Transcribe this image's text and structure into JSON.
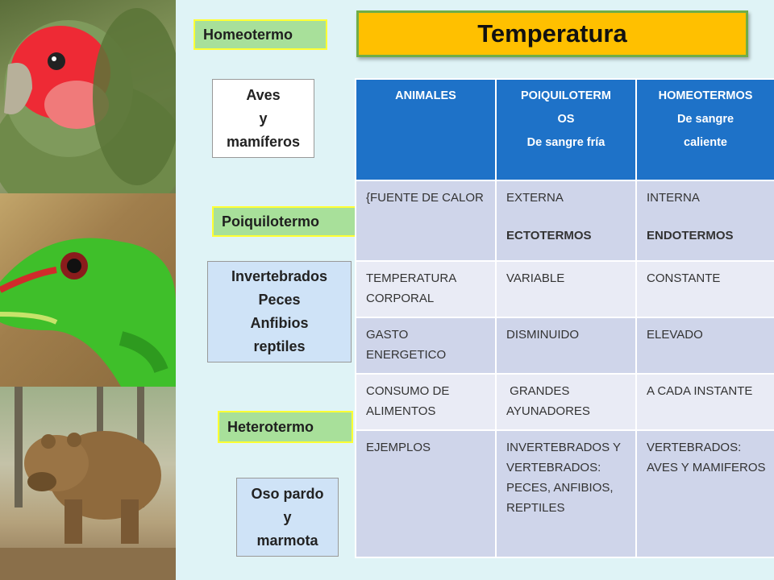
{
  "title": "Temperatura",
  "tags": {
    "homeotermo": "Homeotermo",
    "poiquilotermo": "Poiquilotermo",
    "heterotermo": "Heterotermo"
  },
  "groups": {
    "homeotermo": [
      "Aves",
      "y",
      "mamíferos"
    ],
    "poiquilotermo": [
      "Invertebrados",
      "Peces",
      "Anfibios",
      "reptiles"
    ],
    "heterotermo": [
      "Oso pardo",
      "y",
      "marmota"
    ]
  },
  "table": {
    "headers": [
      {
        "line1": "ANIMALES",
        "line2": ""
      },
      {
        "line1": "POIQUILOTERM",
        "line1b": "OS",
        "line2": "De sangre fría"
      },
      {
        "line1": "HOMEOTERMOS",
        "line2": "De sangre",
        "line3": "caliente"
      }
    ],
    "rows": [
      {
        "c1": "{FUENTE DE CALOR",
        "c2": "EXTERNA",
        "c2b": "ECTOTERMOS",
        "c3": "INTERNA",
        "c3b": "ENDOTERMOS"
      },
      {
        "c1": "TEMPERATURA CORPORAL",
        "c2": "VARIABLE",
        "c3": "CONSTANTE"
      },
      {
        "c1": "GASTO ENERGETICO",
        "c2": "DISMINUIDO",
        "c3": "ELEVADO"
      },
      {
        "c1": "CONSUMO DE ALIMENTOS",
        "c2": " GRANDES AYUNADORES",
        "c3": "A CADA INSTANTE"
      },
      {
        "c1": "EJEMPLOS",
        "c2": "INVERTEBRADOS Y VERTEBRADOS: PECES, ANFIBIOS, REPTILES",
        "c3": "VERTEBRADOS: AVES Y MAMIFEROS"
      }
    ]
  }
}
